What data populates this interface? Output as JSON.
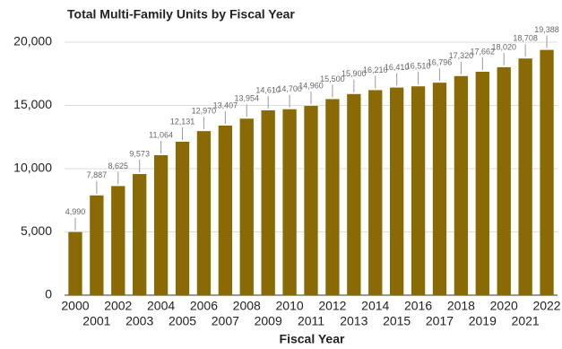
{
  "chart_data": {
    "type": "bar",
    "title": "Total Multi-Family Units by Fiscal Year",
    "x_label": "Fiscal Year",
    "categories": [
      "2000",
      "2001",
      "2002",
      "2003",
      "2004",
      "2005",
      "2006",
      "2007",
      "2008",
      "2009",
      "2010",
      "2011",
      "2012",
      "2013",
      "2014",
      "2015",
      "2016",
      "2017",
      "2018",
      "2019",
      "2020",
      "2021",
      "2022"
    ],
    "values": [
      4990,
      7887,
      8625,
      9573,
      11064,
      12131,
      12970,
      13407,
      13954,
      14610,
      14700,
      14960,
      15500,
      15900,
      16210,
      16410,
      16510,
      16796,
      17320,
      17662,
      18020,
      18708,
      19388
    ],
    "value_labels": [
      "4,990",
      "7,887",
      "8,625",
      "9,573",
      "11,064",
      "12,131",
      "12,970",
      "13,407",
      "13,954",
      "14,610",
      "14,700",
      "14,960",
      "15,500",
      "15,900",
      "16,210",
      "16,410",
      "16,510",
      "16,796",
      "17,320",
      "17,662",
      "18,020",
      "18,708",
      "19,388"
    ],
    "color": "#8a6a05",
    "ylim": [
      0,
      20000
    ],
    "yticks": [
      0,
      {
        "value": 5000,
        "label": "5,000"
      },
      {
        "value": 10000,
        "label": "10,000"
      },
      {
        "value": 15000,
        "label": "15,000"
      },
      {
        "value": 20000,
        "label": "20,000"
      }
    ],
    "grid": true
  }
}
